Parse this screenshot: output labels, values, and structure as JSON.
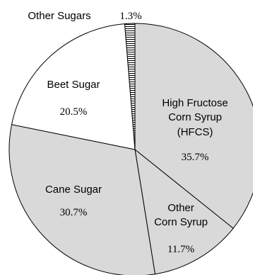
{
  "chart_data": {
    "type": "pie",
    "title": "",
    "slices": [
      {
        "label": "High Fructose Corn Syrup (HFCS)",
        "label_lines": [
          "High Fructose",
          "Corn Syrup",
          "(HFCS)"
        ],
        "value": 35.7,
        "value_label": "35.7%",
        "fill": "#d9d9d9"
      },
      {
        "label": "Other Corn Syrup",
        "label_lines": [
          "Other",
          "Corn Syrup"
        ],
        "value": 11.7,
        "value_label": "11.7%",
        "fill": "#d9d9d9"
      },
      {
        "label": "Cane Sugar",
        "label_lines": [
          "Cane Sugar"
        ],
        "value": 30.7,
        "value_label": "30.7%",
        "fill": "#d9d9d9"
      },
      {
        "label": "Beet Sugar",
        "label_lines": [
          "Beet Sugar"
        ],
        "value": 20.5,
        "value_label": "20.5%",
        "fill": "#ffffff"
      },
      {
        "label": "Other Sugars",
        "label_lines": [
          "Other Sugars"
        ],
        "value": 1.3,
        "value_label": "1.3%",
        "fill": "hatched"
      }
    ],
    "start_angle": "top (12 o'clock), clockwise",
    "legend": "none (labels placed on slices)"
  }
}
